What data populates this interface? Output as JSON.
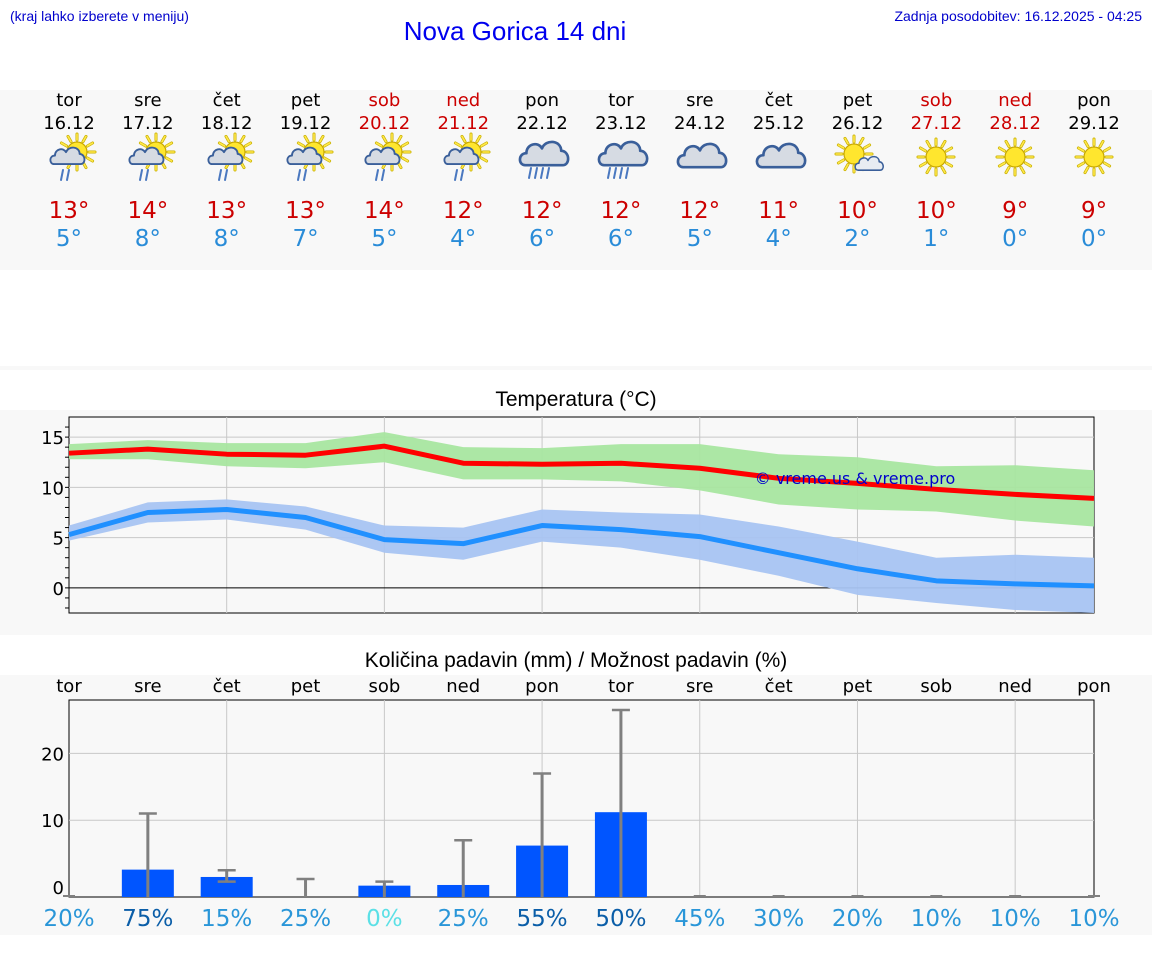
{
  "header": {
    "left_note": "(kraj lahko izberete v meniju)",
    "title": "Nova Gorica 14 dni",
    "updated": "Zadnja posodobitev: 16.12.2025 - 04:25"
  },
  "colors": {
    "weekday": "#000000",
    "weekend": "#cc0000",
    "tmax": "#cc0000",
    "tmin": "#2a8cd8",
    "max_line": "#ff0000",
    "max_band": "#a8e6a0",
    "min_line": "#2090ff",
    "min_band": "#a8c4f2",
    "bar": "#0055ff",
    "errbar": "#808080",
    "watermark": "#0000cc"
  },
  "days": [
    {
      "name": "tor",
      "date": "16.12",
      "weekend": false,
      "icon": "sun-cloud-rain-light-icon",
      "tmax": "13°",
      "tmin": "5°"
    },
    {
      "name": "sre",
      "date": "17.12",
      "weekend": false,
      "icon": "sun-cloud-rain-light-icon",
      "tmax": "14°",
      "tmin": "8°"
    },
    {
      "name": "čet",
      "date": "18.12",
      "weekend": false,
      "icon": "sun-cloud-rain-light-icon",
      "tmax": "13°",
      "tmin": "8°"
    },
    {
      "name": "pet",
      "date": "19.12",
      "weekend": false,
      "icon": "sun-cloud-rain-light-icon",
      "tmax": "13°",
      "tmin": "7°"
    },
    {
      "name": "sob",
      "date": "20.12",
      "weekend": true,
      "icon": "sun-cloud-rain-light-icon",
      "tmax": "14°",
      "tmin": "5°"
    },
    {
      "name": "ned",
      "date": "21.12",
      "weekend": true,
      "icon": "sun-cloud-rain-light-icon",
      "tmax": "12°",
      "tmin": "4°"
    },
    {
      "name": "pon",
      "date": "22.12",
      "weekend": false,
      "icon": "cloud-rain-icon",
      "tmax": "12°",
      "tmin": "6°"
    },
    {
      "name": "tor",
      "date": "23.12",
      "weekend": false,
      "icon": "cloud-rain-icon",
      "tmax": "12°",
      "tmin": "6°"
    },
    {
      "name": "sre",
      "date": "24.12",
      "weekend": false,
      "icon": "cloudy-icon",
      "tmax": "12°",
      "tmin": "5°"
    },
    {
      "name": "čet",
      "date": "25.12",
      "weekend": false,
      "icon": "cloudy-icon",
      "tmax": "11°",
      "tmin": "4°"
    },
    {
      "name": "pet",
      "date": "26.12",
      "weekend": false,
      "icon": "sun-small-cloud-icon",
      "tmax": "10°",
      "tmin": "2°"
    },
    {
      "name": "sob",
      "date": "27.12",
      "weekend": true,
      "icon": "sun-icon",
      "tmax": "10°",
      "tmin": "1°"
    },
    {
      "name": "ned",
      "date": "28.12",
      "weekend": true,
      "icon": "sun-icon",
      "tmax": "9°",
      "tmin": "0°"
    },
    {
      "name": "pon",
      "date": "29.12",
      "weekend": false,
      "icon": "sun-icon",
      "tmax": "9°",
      "tmin": "0°"
    }
  ],
  "chart_data": [
    {
      "type": "line",
      "title": "Temperatura (°C)",
      "x": [
        0,
        1,
        2,
        3,
        4,
        5,
        6,
        7,
        8,
        9,
        10,
        11,
        12,
        13
      ],
      "ylim": [
        -2.5,
        17
      ],
      "yticks": [
        "0",
        "5",
        "10",
        "15"
      ],
      "ytick_values": [
        0,
        5,
        10,
        15
      ],
      "grid": true,
      "watermark": "© vreme.us & vreme.pro",
      "series": [
        {
          "name": "max",
          "values": [
            13.4,
            13.8,
            13.3,
            13.2,
            14.1,
            12.4,
            12.3,
            12.4,
            11.9,
            10.9,
            10.4,
            9.8,
            9.3,
            8.9
          ],
          "band_low": [
            12.8,
            12.8,
            12.1,
            11.9,
            12.5,
            10.8,
            10.8,
            10.6,
            9.7,
            8.3,
            7.8,
            7.6,
            6.7,
            6.1
          ],
          "band_high": [
            14.3,
            14.7,
            14.4,
            14.4,
            15.5,
            14.0,
            13.9,
            14.3,
            14.3,
            13.3,
            13.0,
            12.1,
            12.2,
            11.7
          ]
        },
        {
          "name": "min",
          "values": [
            5.3,
            7.5,
            7.8,
            7.0,
            4.8,
            4.4,
            6.2,
            5.8,
            5.1,
            3.5,
            1.9,
            0.7,
            0.4,
            0.2
          ],
          "band_low": [
            4.7,
            6.5,
            6.8,
            5.8,
            3.5,
            2.8,
            4.6,
            4.0,
            2.8,
            1.2,
            -0.7,
            -1.5,
            -2.2,
            -2.5
          ],
          "band_high": [
            6.2,
            8.5,
            8.8,
            8.1,
            6.2,
            6.0,
            7.8,
            7.5,
            7.3,
            6.1,
            4.6,
            3.0,
            3.3,
            3.0
          ]
        }
      ]
    },
    {
      "type": "bar",
      "title": "Količina padavin (mm) / Možnost padavin (%)",
      "categories": [
        "tor",
        "sre",
        "čet",
        "pet",
        "sob",
        "ned",
        "pon",
        "tor",
        "sre",
        "čet",
        "pet",
        "sob",
        "ned",
        "pon"
      ],
      "values": [
        0,
        2.6,
        1.5,
        0,
        0.2,
        0.3,
        6.2,
        11.2,
        0,
        0,
        0,
        0,
        0,
        0
      ],
      "err_high": [
        0,
        11,
        2.5,
        1.2,
        0.8,
        7,
        17,
        26.5,
        0,
        0,
        0,
        0,
        0,
        0
      ],
      "err_low": [
        0,
        0,
        0.8,
        0,
        0,
        0,
        0,
        0,
        0,
        0,
        0,
        0,
        0,
        0
      ],
      "ylim": [
        -1.5,
        28
      ],
      "yticks": [
        "0",
        "10",
        "20"
      ],
      "ytick_values": [
        0,
        10,
        20
      ],
      "grid": true,
      "probability": [
        "20%",
        "75%",
        "15%",
        "25%",
        "0%",
        "25%",
        "55%",
        "50%",
        "45%",
        "30%",
        "20%",
        "10%",
        "10%",
        "10%"
      ],
      "probability_colors": [
        "#2a96d8",
        "#0b5ea8",
        "#2a96d8",
        "#2a96d8",
        "#5ce0e6",
        "#2a96d8",
        "#0b5ea8",
        "#0b5ea8",
        "#2a96d8",
        "#2a96d8",
        "#2a96d8",
        "#2a96d8",
        "#2a96d8",
        "#2a96d8"
      ]
    }
  ]
}
